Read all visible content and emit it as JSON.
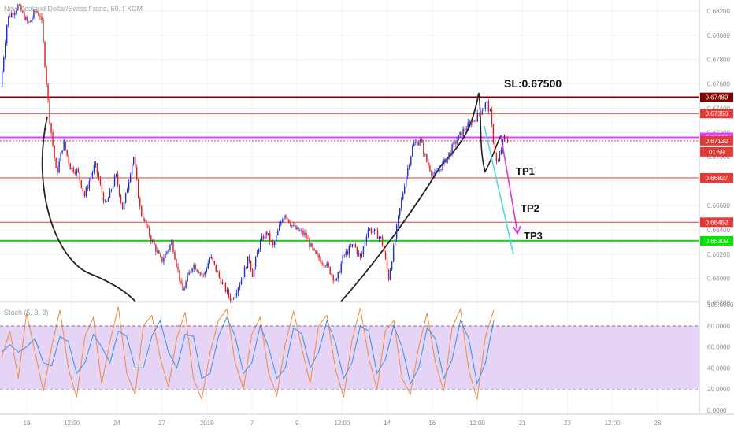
{
  "header": {
    "symbol_title": "New Zealand Dollar/Swiss Franc, 60, FXCM"
  },
  "annotations": {
    "sl": "SL:0.67500",
    "tp1": "TP1",
    "tp2": "TP2",
    "tp3": "TP3"
  },
  "indicator": {
    "title": "Stoch (5, 3, 3)"
  },
  "colors": {
    "up_candle": "#1f2fd4",
    "down_candle": "#d81e1e",
    "sl_line": "#7a0000",
    "red_level": "#e53935",
    "magenta_level": "#e040fb",
    "green_level": "#00e600",
    "arc": "#222222",
    "arrow_magenta": "#d63bd6",
    "arrow_cyan": "#4dd8e8",
    "stoch_band": "#e6d4f7",
    "stoch_k": "#f08a3c",
    "stoch_d": "#3a8ee6"
  },
  "chart_data": [
    {
      "type": "candlestick",
      "title": "New Zealand Dollar/Swiss Franc, 60, FXCM",
      "ylim": [
        0.6581,
        0.6829
      ],
      "price_ticks": [
        "0.68200",
        "0.68000",
        "0.67800",
        "0.67600",
        "0.67400",
        "0.67200",
        "0.67000",
        "0.66800",
        "0.66600",
        "0.66400",
        "0.66200",
        "0.66000",
        "0.65800"
      ],
      "x_ticks": [
        "19",
        "12:00",
        "24",
        "27",
        "2019",
        "7",
        "9",
        "12:00",
        "14",
        "16",
        "12:00",
        "21",
        "23",
        "12:00",
        "28"
      ],
      "levels": [
        {
          "price": 0.67489,
          "label": "0.67489",
          "color": "#7a0000"
        },
        {
          "price": 0.67356,
          "label": "0.67356",
          "color": "#e53935"
        },
        {
          "price": 0.6716,
          "label": "0.67160",
          "color": "#e040fb"
        },
        {
          "price": 0.67132,
          "label": "0.67132",
          "color": "#e53935"
        },
        {
          "price": 0.66827,
          "label": "0.66827",
          "color": "#e53935"
        },
        {
          "price": 0.66462,
          "label": "0.66462",
          "color": "#e53935"
        },
        {
          "price": 0.66309,
          "label": "0.66309",
          "color": "#00e600"
        }
      ],
      "countdown_label": "01:59",
      "path": [
        [
          0.0,
          0.6758
        ],
        [
          0.01,
          0.6814
        ],
        [
          0.025,
          0.6824
        ],
        [
          0.04,
          0.6809
        ],
        [
          0.05,
          0.682
        ],
        [
          0.058,
          0.6816
        ],
        [
          0.063,
          0.678
        ],
        [
          0.07,
          0.6732
        ],
        [
          0.08,
          0.6685
        ],
        [
          0.09,
          0.6712
        ],
        [
          0.1,
          0.6691
        ],
        [
          0.11,
          0.6688
        ],
        [
          0.12,
          0.6668
        ],
        [
          0.135,
          0.6694
        ],
        [
          0.15,
          0.6659
        ],
        [
          0.165,
          0.6685
        ],
        [
          0.175,
          0.6656
        ],
        [
          0.19,
          0.6701
        ],
        [
          0.2,
          0.6655
        ],
        [
          0.215,
          0.6633
        ],
        [
          0.23,
          0.6614
        ],
        [
          0.245,
          0.663
        ],
        [
          0.26,
          0.6589
        ],
        [
          0.275,
          0.6612
        ],
        [
          0.29,
          0.6602
        ],
        [
          0.3,
          0.6618
        ],
        [
          0.315,
          0.6598
        ],
        [
          0.33,
          0.6582
        ],
        [
          0.345,
          0.66
        ],
        [
          0.355,
          0.6618
        ],
        [
          0.36,
          0.6603
        ],
        [
          0.37,
          0.6628
        ],
        [
          0.38,
          0.6638
        ],
        [
          0.39,
          0.6626
        ],
        [
          0.405,
          0.6654
        ],
        [
          0.42,
          0.6641
        ],
        [
          0.435,
          0.6636
        ],
        [
          0.45,
          0.6619
        ],
        [
          0.465,
          0.6612
        ],
        [
          0.48,
          0.6597
        ],
        [
          0.49,
          0.6618
        ],
        [
          0.505,
          0.6628
        ],
        [
          0.515,
          0.6616
        ],
        [
          0.525,
          0.6641
        ],
        [
          0.535,
          0.6638
        ],
        [
          0.545,
          0.6632
        ],
        [
          0.555,
          0.66
        ],
        [
          0.57,
          0.6654
        ],
        [
          0.58,
          0.6685
        ],
        [
          0.59,
          0.671
        ],
        [
          0.6,
          0.6714
        ],
        [
          0.61,
          0.6695
        ],
        [
          0.62,
          0.6684
        ],
        [
          0.635,
          0.6696
        ],
        [
          0.65,
          0.6712
        ],
        [
          0.665,
          0.6724
        ],
        [
          0.68,
          0.6732
        ],
        [
          0.69,
          0.674
        ],
        [
          0.695,
          0.6745
        ],
        [
          0.7,
          0.6736
        ],
        [
          0.705,
          0.6712
        ],
        [
          0.71,
          0.6692
        ],
        [
          0.715,
          0.6704
        ],
        [
          0.72,
          0.6716
        ],
        [
          0.725,
          0.6714
        ]
      ]
    },
    {
      "type": "line",
      "title": "Stoch (5, 3, 3)",
      "ylim": [
        0,
        100
      ],
      "y_ticks": [
        "100.0000",
        "80.0000",
        "60.0000",
        "40.0000",
        "20.0000",
        "0.0000"
      ],
      "band": [
        20,
        80
      ],
      "series": [
        {
          "name": "K",
          "values": [
            50,
            75,
            30,
            92,
            55,
            18,
            60,
            95,
            40,
            12,
            70,
            88,
            25,
            65,
            98,
            35,
            15,
            80,
            90,
            50,
            22,
            68,
            93,
            30,
            10,
            55,
            85,
            96,
            45,
            20,
            72,
            88,
            35,
            14,
            62,
            94,
            58,
            25,
            80,
            90,
            40,
            12,
            66,
            97,
            50,
            20,
            75,
            85,
            30,
            15,
            60,
            92,
            45,
            18,
            78,
            96,
            38,
            10,
            70,
            95
          ]
        },
        {
          "name": "D",
          "values": [
            55,
            62,
            55,
            60,
            68,
            45,
            42,
            70,
            65,
            35,
            45,
            72,
            60,
            45,
            75,
            70,
            40,
            40,
            70,
            85,
            55,
            40,
            72,
            70,
            30,
            35,
            70,
            88,
            70,
            35,
            45,
            80,
            60,
            30,
            40,
            78,
            72,
            40,
            55,
            85,
            65,
            30,
            45,
            80,
            75,
            35,
            48,
            80,
            60,
            25,
            40,
            78,
            68,
            30,
            48,
            85,
            68,
            25,
            45,
            85
          ]
        }
      ]
    }
  ]
}
